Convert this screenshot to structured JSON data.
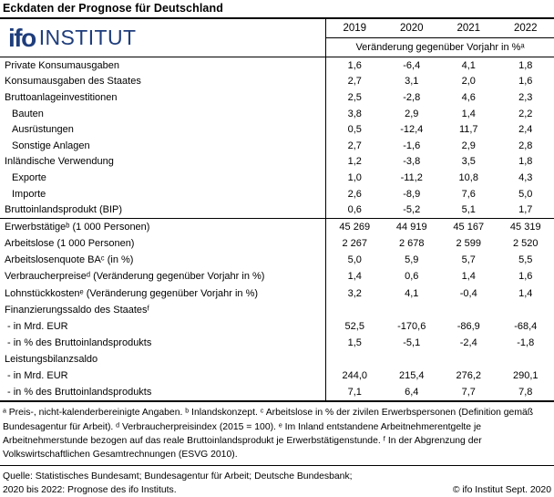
{
  "title": "Eckdaten der Prognose für Deutschland",
  "logo": {
    "ifo": "ifo",
    "institut": "INSTITUT",
    "color": "#1e3d7c"
  },
  "header": {
    "years": [
      "2019",
      "2020",
      "2021",
      "2022"
    ],
    "subtitle": "Veränderung gegenüber Vorjahr in %ᵃ"
  },
  "table": {
    "groups": [
      {
        "rows": [
          {
            "label": "Private Konsumausgaben",
            "indent": 0,
            "values": [
              "1,6",
              "-6,4",
              "4,1",
              "1,8"
            ]
          },
          {
            "label": "Konsumausgaben des Staates",
            "indent": 0,
            "values": [
              "2,7",
              "3,1",
              "2,0",
              "1,6"
            ]
          },
          {
            "label": "Bruttoanlageinvestitionen",
            "indent": 0,
            "values": [
              "2,5",
              "-2,8",
              "4,6",
              "2,3"
            ]
          },
          {
            "label": "Bauten",
            "indent": 1,
            "values": [
              "3,8",
              "2,9",
              "1,4",
              "2,2"
            ]
          },
          {
            "label": "Ausrüstungen",
            "indent": 1,
            "values": [
              "0,5",
              "-12,4",
              "11,7",
              "2,4"
            ]
          },
          {
            "label": "Sonstige Anlagen",
            "indent": 1,
            "values": [
              "2,7",
              "-1,6",
              "2,9",
              "2,8"
            ]
          },
          {
            "label": "Inländische Verwendung",
            "indent": 0,
            "values": [
              "1,2",
              "-3,8",
              "3,5",
              "1,8"
            ]
          },
          {
            "label": "Exporte",
            "indent": 1,
            "values": [
              "1,0",
              "-11,2",
              "10,8",
              "4,3"
            ]
          },
          {
            "label": "Importe",
            "indent": 1,
            "values": [
              "2,6",
              "-8,9",
              "7,6",
              "5,0"
            ]
          },
          {
            "label": "Bruttoinlandsprodukt (BIP)",
            "indent": 0,
            "values": [
              "0,6",
              "-5,2",
              "5,1",
              "1,7"
            ]
          }
        ]
      },
      {
        "rows": [
          {
            "label": "Erwerbstätigeᵇ (1 000 Personen)",
            "indent": 0,
            "values": [
              "45 269",
              "44 919",
              "45 167",
              "45 319"
            ]
          },
          {
            "label": "Arbeitslose (1 000 Personen)",
            "indent": 0,
            "values": [
              "2 267",
              "2 678",
              "2 599",
              "2 520"
            ]
          },
          {
            "label": "Arbeitslosenquote BAᶜ (in %)",
            "indent": 0,
            "values": [
              "5,0",
              "5,9",
              "5,7",
              "5,5"
            ]
          },
          {
            "label": "Verbraucherpreiseᵈ (Veränderung gegenüber Vorjahr in %)",
            "indent": 0,
            "values": [
              "1,4",
              "0,6",
              "1,4",
              "1,6"
            ]
          },
          {
            "label": "Lohnstückkostenᵉ (Veränderung gegenüber Vorjahr in %)",
            "indent": 0,
            "values": [
              "3,2",
              "4,1",
              "-0,4",
              "1,4"
            ]
          },
          {
            "label": "Finanzierungssaldo des Staatesᶠ",
            "indent": 0,
            "values": [
              "",
              "",
              "",
              ""
            ]
          },
          {
            "label": "- in Mrd. EUR",
            "indent": 2,
            "values": [
              "52,5",
              "-170,6",
              "-86,9",
              "-68,4"
            ]
          },
          {
            "label": "- in % des Bruttoinlandsprodukts",
            "indent": 2,
            "values": [
              "1,5",
              "-5,1",
              "-2,4",
              "-1,8"
            ]
          },
          {
            "label": "Leistungsbilanzsaldo",
            "indent": 0,
            "values": [
              "",
              "",
              "",
              ""
            ]
          },
          {
            "label": "- in Mrd. EUR",
            "indent": 2,
            "values": [
              "244,0",
              "215,4",
              "276,2",
              "290,1"
            ]
          },
          {
            "label": "- in % des Bruttoinlandsprodukts",
            "indent": 2,
            "values": [
              "7,1",
              "6,4",
              "7,7",
              "7,8"
            ]
          }
        ]
      }
    ]
  },
  "footnotes": "ᵃ Preis-, nicht-kalenderbereinigte Angaben. ᵇ Inlandskonzept. ᶜ Arbeitslose in % der zivilen Erwerbspersonen (Definition gemäß Bundesagentur für Arbeit). ᵈ Verbraucherpreisindex (2015 = 100). ᵉ Im Inland entstandene Arbeitnehmerentgelte je Arbeitnehmerstunde bezogen auf das reale Bruttoinlandsprodukt je Erwerbstätigenstunde. ᶠ In der Abgrenzung der Volkswirtschaftlichen Gesamtrechnungen (ESVG 2010).",
  "source": {
    "line1": "Quelle: Statistisches Bundesamt; Bundesagentur für Arbeit; Deutsche Bundesbank;",
    "line2": "2020 bis 2022: Prognose des ifo Instituts.",
    "copyright": "© ifo Institut Sept. 2020"
  }
}
